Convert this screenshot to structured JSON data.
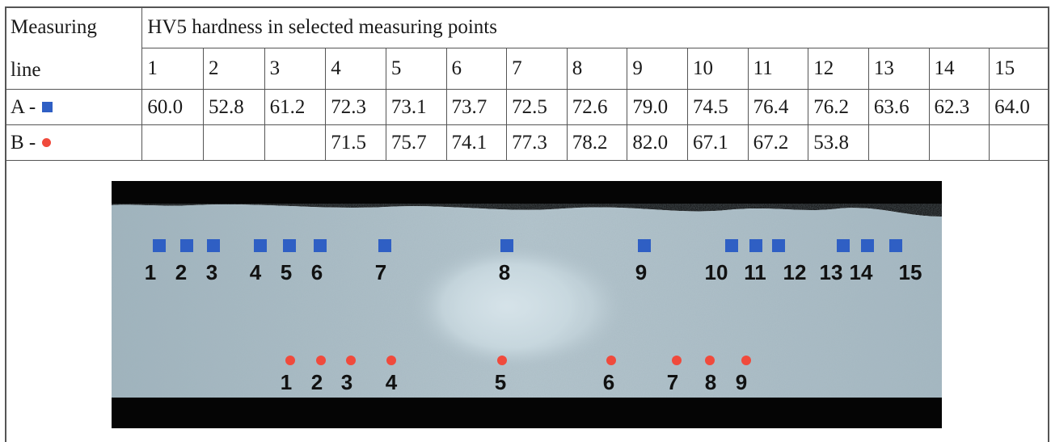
{
  "table": {
    "measuring_line_header_1": "Measuring",
    "measuring_line_header_2": "line",
    "hardness_header": "HV5 hardness in selected measuring points",
    "points": [
      "1",
      "2",
      "3",
      "4",
      "5",
      "6",
      "7",
      "8",
      "9",
      "10",
      "11",
      "12",
      "13",
      "14",
      "15"
    ],
    "rows": [
      {
        "label": "A -",
        "marker": "blue-square",
        "values": [
          "60.0",
          "52.8",
          "61.2",
          "72.3",
          "73.1",
          "73.7",
          "72.5",
          "72.6",
          "79.0",
          "74.5",
          "76.4",
          "76.2",
          "63.6",
          "62.3",
          "64.0"
        ]
      },
      {
        "label": "B -",
        "marker": "red-dot",
        "values": [
          "",
          "",
          "",
          "71.5",
          "75.7",
          "74.1",
          "77.3",
          "78.2",
          "82.0",
          "67.1",
          "67.2",
          "53.8",
          "",
          "",
          ""
        ]
      }
    ]
  },
  "micrograph": {
    "line_a_color": "#2f5fc4",
    "line_b_color": "#f04a3c",
    "line_a_labels": [
      "1",
      "2",
      "3",
      "4",
      "5",
      "6",
      "7",
      "8",
      "9",
      "10",
      "11",
      "12",
      "13",
      "14",
      "15"
    ],
    "line_b_labels": [
      "1",
      "2",
      "3",
      "4",
      "5",
      "6",
      "7",
      "8",
      "9"
    ]
  }
}
